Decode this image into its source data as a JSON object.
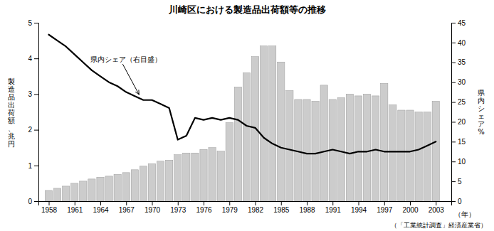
{
  "chart_data": {
    "type": "bar",
    "title": "川崎区における製造品出荷額等の推移",
    "source": "（「工業統計調査」経済産業省）",
    "xlabel": "（年）",
    "ylabel": "製造品出荷額、兆円",
    "y2label": "県内シェア%",
    "x": [
      1958,
      1959,
      1960,
      1961,
      1962,
      1963,
      1964,
      1965,
      1966,
      1967,
      1968,
      1969,
      1970,
      1971,
      1972,
      1973,
      1974,
      1975,
      1976,
      1977,
      1978,
      1979,
      1980,
      1981,
      1982,
      1983,
      1984,
      1985,
      1986,
      1987,
      1988,
      1989,
      1990,
      1991,
      1992,
      1993,
      1994,
      1995,
      1996,
      1997,
      1998,
      1999,
      2000,
      2001,
      2002,
      2003
    ],
    "series": [
      {
        "type": "bar",
        "color": "#cccccc",
        "values": [
          0.3,
          0.36,
          0.42,
          0.5,
          0.56,
          0.62,
          0.67,
          0.7,
          0.75,
          0.8,
          0.88,
          0.98,
          1.05,
          1.12,
          1.15,
          1.3,
          1.35,
          1.35,
          1.45,
          1.5,
          1.4,
          2.2,
          3.2,
          3.6,
          4.05,
          4.35,
          4.35,
          3.9,
          3.1,
          2.85,
          2.85,
          2.8,
          3.25,
          2.85,
          2.9,
          3.0,
          2.95,
          3.0,
          2.95,
          3.3,
          2.7,
          2.55,
          2.55,
          2.5,
          2.5,
          2.8
        ]
      },
      {
        "type": "line",
        "axis": "y2",
        "color": "#000000",
        "values": [
          42.0,
          40.5,
          39.0,
          37.0,
          35.0,
          33.0,
          31.5,
          30.0,
          29.0,
          27.5,
          26.5,
          25.5,
          25.5,
          24.5,
          23.5,
          15.5,
          16.5,
          21.0,
          20.5,
          21.0,
          20.5,
          21.0,
          20.5,
          19.0,
          18.5,
          16.0,
          14.5,
          13.5,
          13.0,
          12.5,
          12.0,
          12.0,
          12.5,
          13.0,
          12.5,
          12.0,
          12.5,
          12.5,
          13.0,
          12.5,
          12.5,
          12.5,
          12.5,
          13.0,
          14.0,
          15.0
        ]
      }
    ],
    "annotations": [
      {
        "text": "県内シェア（右目盛）",
        "x": 1968.5,
        "y": 26.5,
        "axis": "y2"
      }
    ],
    "xlim": [
      1956.8,
      2004.8
    ],
    "xticks": [
      1958,
      1961,
      1964,
      1967,
      1970,
      1973,
      1976,
      1979,
      1982,
      1985,
      1988,
      1991,
      1994,
      1997,
      2000,
      2003
    ],
    "ylim": [
      0,
      5
    ],
    "yticks": [
      0,
      1,
      2,
      3,
      4,
      5
    ],
    "y2lim": [
      0,
      45
    ],
    "y2ticks": [
      0,
      5,
      10,
      15,
      20,
      25,
      30,
      35,
      40,
      45
    ],
    "grid": false
  }
}
